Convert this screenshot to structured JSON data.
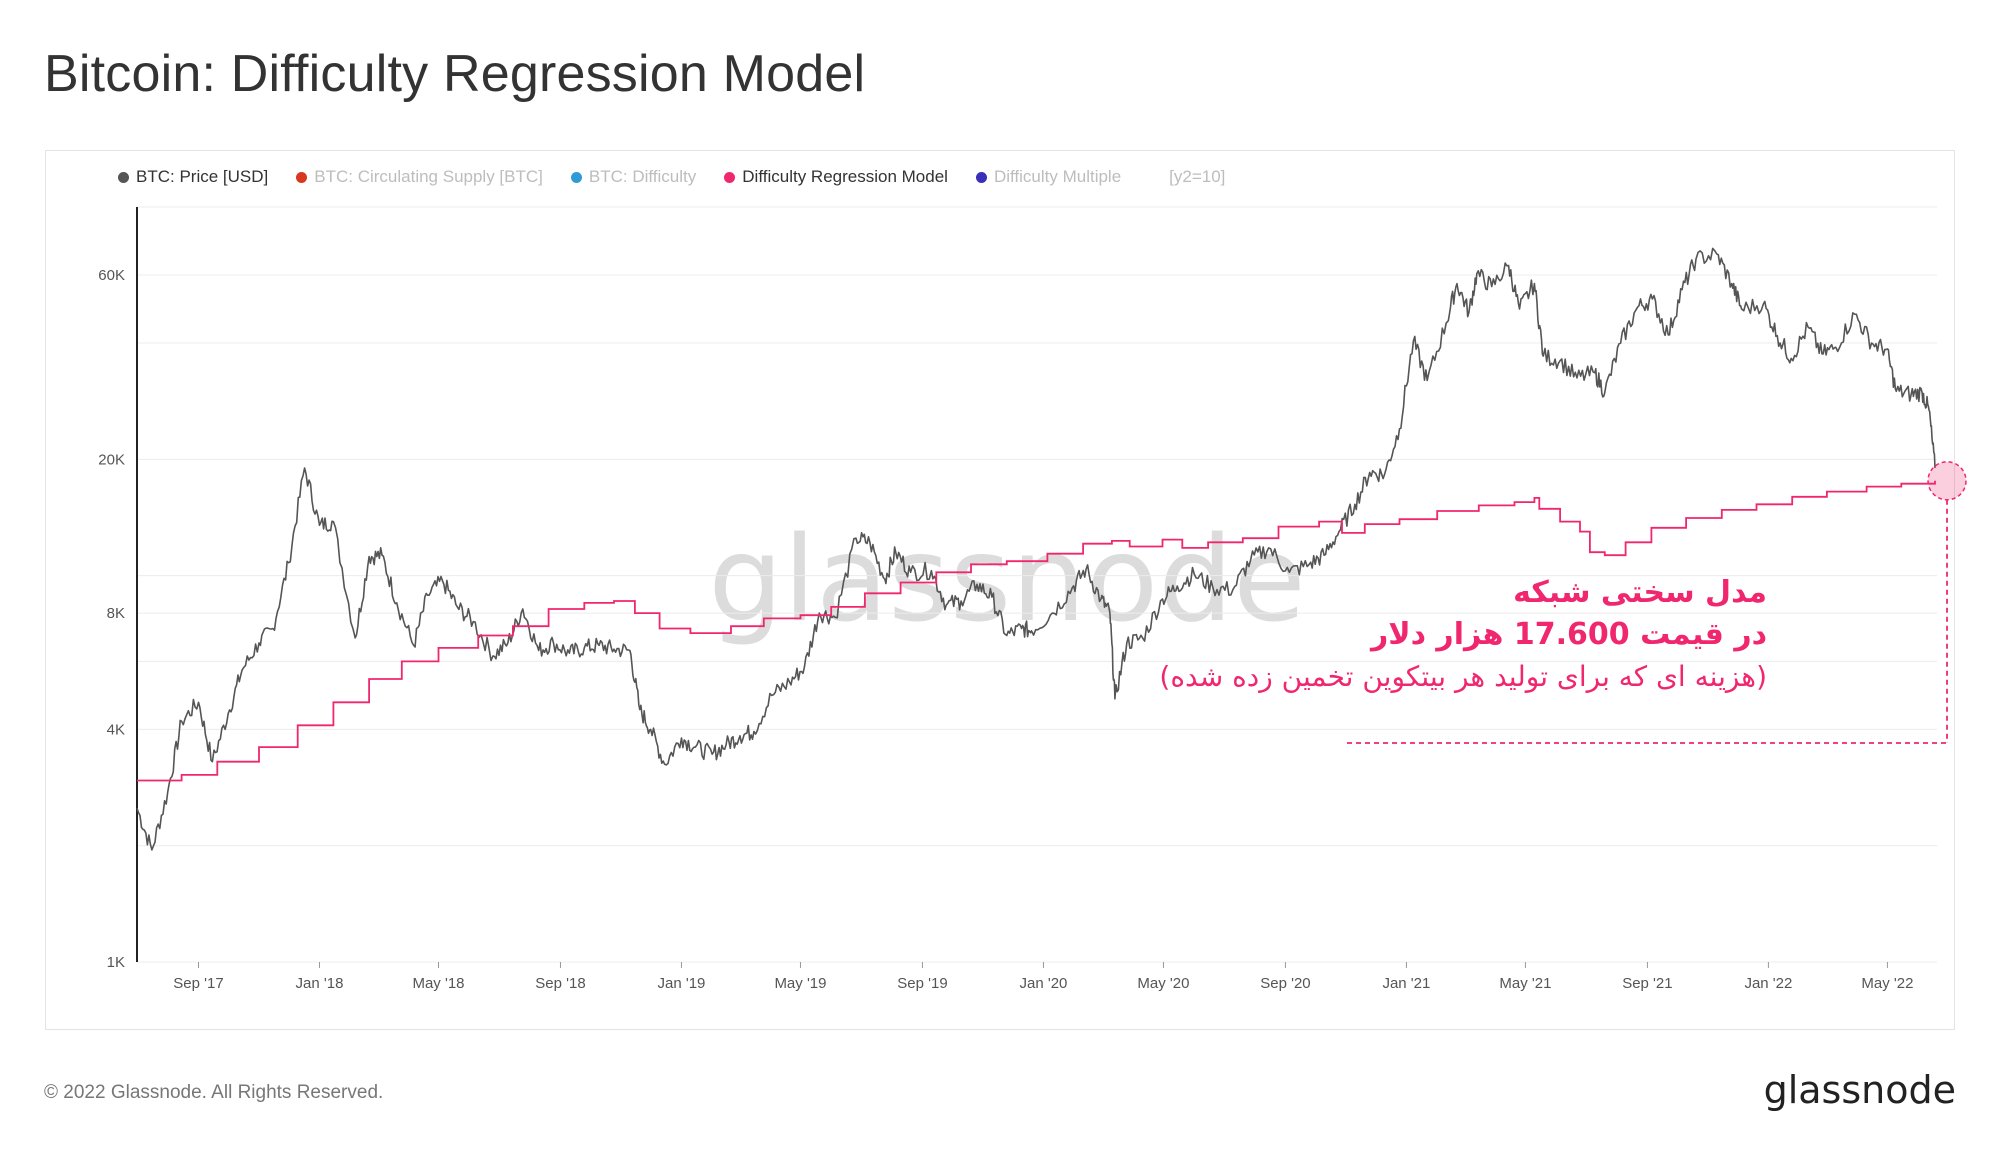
{
  "page": {
    "title": "Bitcoin: Difficulty Regression Model",
    "copyright": "© 2022 Glassnode. All Rights Reserved.",
    "logo": "glassnode",
    "watermark": "glassnode"
  },
  "legend": {
    "items": [
      {
        "label": "BTC: Price [USD]",
        "color": "#555555",
        "active": true
      },
      {
        "label": "BTC: Circulating Supply [BTC]",
        "color": "#d9381e",
        "active": false
      },
      {
        "label": "BTC: Difficulty",
        "color": "#2e9bd6",
        "active": false
      },
      {
        "label": "Difficulty Regression Model",
        "color": "#f0266f",
        "active": true
      },
      {
        "label": "Difficulty Multiple",
        "color": "#3a2fb8",
        "active": false
      }
    ],
    "extra": "[y2=10]"
  },
  "annotation": {
    "line1": "مدل سختی شبکه",
    "line2": "در قیمت 17.600 هزار دلار",
    "line3": "(هزینه ای که برای تولید هر بیتکوین تخمین زده شده)",
    "color": "#f0266f"
  },
  "chart_data": {
    "type": "line",
    "title": "Bitcoin: Difficulty Regression Model",
    "y_scale": "log",
    "ylim": [
      1000,
      90000
    ],
    "xlim": [
      "2017-07-01",
      "2022-06-20"
    ],
    "y_ticks": [
      {
        "value": 1000,
        "label": "1K"
      },
      {
        "value": 4000,
        "label": "4K"
      },
      {
        "value": 8000,
        "label": "8K"
      },
      {
        "value": 20000,
        "label": "20K"
      },
      {
        "value": 60000,
        "label": "60K"
      }
    ],
    "x_ticks": [
      {
        "date": "2017-09-01",
        "label": "Sep '17"
      },
      {
        "date": "2018-01-01",
        "label": "Jan '18"
      },
      {
        "date": "2018-05-01",
        "label": "May '18"
      },
      {
        "date": "2018-09-01",
        "label": "Sep '18"
      },
      {
        "date": "2019-01-01",
        "label": "Jan '19"
      },
      {
        "date": "2019-05-01",
        "label": "May '19"
      },
      {
        "date": "2019-09-01",
        "label": "Sep '19"
      },
      {
        "date": "2020-01-01",
        "label": "Jan '20"
      },
      {
        "date": "2020-05-01",
        "label": "May '20"
      },
      {
        "date": "2020-09-01",
        "label": "Sep '20"
      },
      {
        "date": "2021-01-01",
        "label": "Jan '21"
      },
      {
        "date": "2021-05-01",
        "label": "May '21"
      },
      {
        "date": "2021-09-01",
        "label": "Sep '21"
      },
      {
        "date": "2022-01-01",
        "label": "Jan '22"
      },
      {
        "date": "2022-05-01",
        "label": "May '22"
      }
    ],
    "grid": true,
    "highlight": {
      "date": "2022-06-18",
      "value": 17600,
      "color": "#f0266f"
    },
    "series": [
      {
        "name": "BTC: Price [USD]",
        "color": "#555555",
        "points": [
          [
            "2017-07-01",
            2500
          ],
          [
            "2017-07-16",
            1950
          ],
          [
            "2017-08-01",
            2750
          ],
          [
            "2017-08-15",
            4200
          ],
          [
            "2017-09-01",
            4700
          ],
          [
            "2017-09-15",
            3300
          ],
          [
            "2017-10-01",
            4400
          ],
          [
            "2017-10-15",
            5700
          ],
          [
            "2017-11-01",
            6700
          ],
          [
            "2017-11-15",
            7300
          ],
          [
            "2017-12-01",
            10800
          ],
          [
            "2017-12-17",
            19000
          ],
          [
            "2018-01-01",
            13500
          ],
          [
            "2018-01-15",
            13800
          ],
          [
            "2018-02-06",
            6900
          ],
          [
            "2018-02-20",
            11200
          ],
          [
            "2018-03-05",
            11300
          ],
          [
            "2018-03-20",
            8500
          ],
          [
            "2018-04-06",
            6600
          ],
          [
            "2018-04-20",
            8900
          ],
          [
            "2018-05-05",
            9700
          ],
          [
            "2018-05-20",
            8300
          ],
          [
            "2018-06-05",
            7600
          ],
          [
            "2018-06-25",
            6200
          ],
          [
            "2018-07-10",
            6700
          ],
          [
            "2018-07-25",
            8200
          ],
          [
            "2018-08-10",
            6400
          ],
          [
            "2018-08-25",
            6700
          ],
          [
            "2018-09-10",
            6300
          ],
          [
            "2018-09-25",
            6500
          ],
          [
            "2018-10-10",
            6600
          ],
          [
            "2018-10-25",
            6450
          ],
          [
            "2018-11-10",
            6400
          ],
          [
            "2018-11-20",
            4500
          ],
          [
            "2018-12-01",
            4000
          ],
          [
            "2018-12-15",
            3250
          ],
          [
            "2019-01-01",
            3800
          ],
          [
            "2019-01-15",
            3600
          ],
          [
            "2019-02-01",
            3450
          ],
          [
            "2019-02-15",
            3650
          ],
          [
            "2019-03-01",
            3850
          ],
          [
            "2019-03-15",
            3950
          ],
          [
            "2019-04-02",
            4900
          ],
          [
            "2019-04-20",
            5300
          ],
          [
            "2019-05-05",
            5800
          ],
          [
            "2019-05-20",
            8000
          ],
          [
            "2019-06-05",
            7800
          ],
          [
            "2019-06-26",
            12500
          ],
          [
            "2019-07-10",
            12200
          ],
          [
            "2019-07-25",
            9800
          ],
          [
            "2019-08-05",
            11500
          ],
          [
            "2019-08-20",
            10200
          ],
          [
            "2019-09-10",
            10300
          ],
          [
            "2019-09-25",
            8400
          ],
          [
            "2019-10-10",
            8600
          ],
          [
            "2019-10-26",
            9500
          ],
          [
            "2019-11-10",
            8800
          ],
          [
            "2019-11-25",
            7000
          ],
          [
            "2019-12-10",
            7300
          ],
          [
            "2019-12-20",
            7200
          ],
          [
            "2020-01-10",
            8000
          ],
          [
            "2020-01-30",
            9300
          ],
          [
            "2020-02-13",
            10400
          ],
          [
            "2020-02-28",
            8700
          ],
          [
            "2020-03-08",
            8000
          ],
          [
            "2020-03-13",
            4800
          ],
          [
            "2020-03-25",
            6700
          ],
          [
            "2020-04-10",
            6900
          ],
          [
            "2020-04-30",
            8700
          ],
          [
            "2020-05-15",
            9400
          ],
          [
            "2020-06-01",
            10100
          ],
          [
            "2020-06-20",
            9300
          ],
          [
            "2020-07-10",
            9200
          ],
          [
            "2020-07-28",
            11000
          ],
          [
            "2020-08-15",
            11800
          ],
          [
            "2020-09-05",
            10200
          ],
          [
            "2020-09-25",
            10700
          ],
          [
            "2020-10-10",
            11300
          ],
          [
            "2020-10-25",
            13000
          ],
          [
            "2020-11-10",
            15300
          ],
          [
            "2020-11-25",
            18500
          ],
          [
            "2020-12-10",
            18300
          ],
          [
            "2020-12-25",
            24000
          ],
          [
            "2021-01-08",
            40500
          ],
          [
            "2021-01-22",
            32000
          ],
          [
            "2021-02-10",
            45000
          ],
          [
            "2021-02-21",
            57000
          ],
          [
            "2021-03-05",
            48000
          ],
          [
            "2021-03-13",
            60500
          ],
          [
            "2021-03-28",
            56000
          ],
          [
            "2021-04-14",
            63500
          ],
          [
            "2021-04-25",
            49000
          ],
          [
            "2021-05-10",
            57000
          ],
          [
            "2021-05-19",
            37000
          ],
          [
            "2021-06-05",
            36000
          ],
          [
            "2021-06-22",
            32500
          ],
          [
            "2021-07-10",
            33500
          ],
          [
            "2021-07-20",
            29800
          ],
          [
            "2021-08-05",
            40000
          ],
          [
            "2021-08-22",
            49500
          ],
          [
            "2021-09-06",
            52000
          ],
          [
            "2021-09-22",
            42000
          ],
          [
            "2021-10-06",
            55000
          ],
          [
            "2021-10-20",
            66000
          ],
          [
            "2021-11-10",
            68000
          ],
          [
            "2021-11-25",
            57000
          ],
          [
            "2021-12-05",
            49000
          ],
          [
            "2021-12-27",
            50500
          ],
          [
            "2022-01-10",
            41800
          ],
          [
            "2022-01-24",
            36500
          ],
          [
            "2022-02-10",
            44000
          ],
          [
            "2022-02-24",
            37500
          ],
          [
            "2022-03-10",
            39000
          ],
          [
            "2022-03-29",
            47500
          ],
          [
            "2022-04-15",
            40000
          ],
          [
            "2022-04-30",
            38500
          ],
          [
            "2022-05-10",
            30000
          ],
          [
            "2022-05-25",
            29500
          ],
          [
            "2022-06-05",
            29800
          ],
          [
            "2022-06-12",
            26800
          ],
          [
            "2022-06-18",
            19000
          ]
        ]
      },
      {
        "name": "Difficulty Regression Model",
        "color": "#f0266f",
        "points": [
          [
            "2017-07-01",
            2950
          ],
          [
            "2017-08-15",
            3050
          ],
          [
            "2017-09-20",
            3300
          ],
          [
            "2017-11-01",
            3600
          ],
          [
            "2017-12-10",
            4100
          ],
          [
            "2018-01-15",
            4700
          ],
          [
            "2018-02-20",
            5400
          ],
          [
            "2018-03-25",
            6000
          ],
          [
            "2018-05-01",
            6500
          ],
          [
            "2018-06-10",
            7000
          ],
          [
            "2018-07-15",
            7400
          ],
          [
            "2018-08-20",
            8200
          ],
          [
            "2018-09-25",
            8500
          ],
          [
            "2018-10-25",
            8600
          ],
          [
            "2018-11-15",
            8000
          ],
          [
            "2018-12-10",
            7300
          ],
          [
            "2019-01-10",
            7100
          ],
          [
            "2019-02-20",
            7400
          ],
          [
            "2019-03-25",
            7750
          ],
          [
            "2019-05-01",
            7900
          ],
          [
            "2019-06-01",
            8300
          ],
          [
            "2019-07-05",
            9000
          ],
          [
            "2019-08-10",
            9600
          ],
          [
            "2019-09-15",
            10200
          ],
          [
            "2019-10-20",
            10700
          ],
          [
            "2019-11-25",
            10900
          ],
          [
            "2020-01-05",
            11400
          ],
          [
            "2020-02-10",
            12100
          ],
          [
            "2020-03-10",
            12300
          ],
          [
            "2020-03-28",
            11900
          ],
          [
            "2020-04-30",
            12400
          ],
          [
            "2020-05-20",
            11800
          ],
          [
            "2020-06-15",
            12200
          ],
          [
            "2020-07-20",
            12500
          ],
          [
            "2020-08-25",
            13400
          ],
          [
            "2020-10-05",
            13800
          ],
          [
            "2020-10-28",
            12900
          ],
          [
            "2020-11-20",
            13600
          ],
          [
            "2020-12-25",
            14000
          ],
          [
            "2021-02-01",
            14700
          ],
          [
            "2021-03-15",
            15200
          ],
          [
            "2021-04-20",
            15500
          ],
          [
            "2021-05-10",
            15900
          ],
          [
            "2021-05-15",
            14900
          ],
          [
            "2021-06-05",
            13800
          ],
          [
            "2021-06-25",
            13000
          ],
          [
            "2021-07-05",
            11500
          ],
          [
            "2021-07-20",
            11300
          ],
          [
            "2021-08-10",
            12200
          ],
          [
            "2021-09-05",
            13300
          ],
          [
            "2021-10-10",
            14100
          ],
          [
            "2021-11-15",
            14800
          ],
          [
            "2021-12-20",
            15300
          ],
          [
            "2022-01-25",
            16000
          ],
          [
            "2022-03-01",
            16500
          ],
          [
            "2022-04-10",
            17000
          ],
          [
            "2022-05-15",
            17300
          ],
          [
            "2022-06-18",
            17600
          ]
        ]
      }
    ]
  }
}
